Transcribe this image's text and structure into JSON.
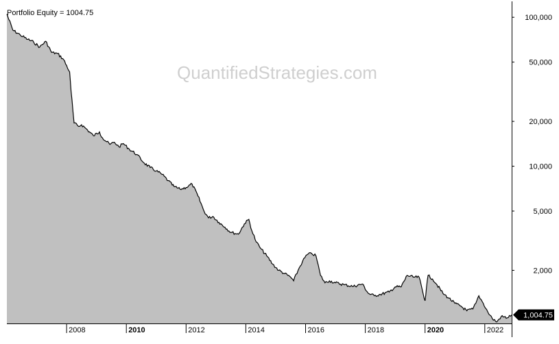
{
  "header": {
    "title": "Portfolio Equity = 1004.75"
  },
  "watermark": "QuantifiedStrategies.com",
  "chart_data": {
    "type": "area",
    "title": "Portfolio Equity = 1004.75",
    "xlabel": "",
    "ylabel": "",
    "y_scale": "log",
    "xlim": [
      2006.0,
      2022.9
    ],
    "ylim": [
      880,
      115000
    ],
    "grid": false,
    "colors": {
      "fill": "#c0c0c0",
      "line": "#000000",
      "tag": "#000000"
    },
    "x_ticks": [
      {
        "value": 2008,
        "label": "2008",
        "bold": false
      },
      {
        "value": 2010,
        "label": "2010",
        "bold": true
      },
      {
        "value": 2012,
        "label": "2012",
        "bold": false
      },
      {
        "value": 2014,
        "label": "2014",
        "bold": false
      },
      {
        "value": 2016,
        "label": "2016",
        "bold": false
      },
      {
        "value": 2018,
        "label": "2018",
        "bold": false
      },
      {
        "value": 2020,
        "label": "2020",
        "bold": true
      },
      {
        "value": 2022,
        "label": "2022",
        "bold": false
      }
    ],
    "y_ticks": [
      {
        "value": 100000,
        "label": "100,000"
      },
      {
        "value": 50000,
        "label": "50,000"
      },
      {
        "value": 20000,
        "label": "20,000"
      },
      {
        "value": 10000,
        "label": "10,000"
      },
      {
        "value": 5000,
        "label": "5,000"
      },
      {
        "value": 2000,
        "label": "2,000"
      }
    ],
    "last_value": {
      "value": 1004.75,
      "label": "1,004.75"
    },
    "series": [
      {
        "x": [
          2006.0,
          2006.2,
          2006.45,
          2006.7,
          2006.9,
          2007.1,
          2007.3,
          2007.5,
          2007.7,
          2007.9,
          2008.1,
          2008.15,
          2008.25,
          2008.4,
          2008.5,
          2008.7,
          2008.9,
          2009.1,
          2009.2,
          2009.45,
          2009.6,
          2009.75,
          2009.9,
          2010.1,
          2010.35,
          2010.6,
          2010.8,
          2011.0,
          2011.2,
          2011.4,
          2011.6,
          2011.8,
          2012.0,
          2012.2,
          2012.4,
          2012.6,
          2012.75,
          2012.9,
          2013.1,
          2013.3,
          2013.5,
          2013.75,
          2013.95,
          2014.1,
          2014.2,
          2014.35,
          2014.5,
          2014.7,
          2014.9,
          2015.1,
          2015.3,
          2015.5,
          2015.6,
          2015.75,
          2015.9,
          2016.05,
          2016.2,
          2016.35,
          2016.5,
          2016.65,
          2016.8,
          2017.0,
          2017.3,
          2017.6,
          2017.9,
          2018.1,
          2018.3,
          2018.5,
          2018.8,
          2019.0,
          2019.2,
          2019.4,
          2019.6,
          2019.8,
          2020.0,
          2020.05,
          2020.1,
          2020.25,
          2020.4,
          2020.6,
          2020.8,
          2021.0,
          2021.2,
          2021.4,
          2021.6,
          2021.7,
          2021.8,
          2021.95,
          2022.1,
          2022.25,
          2022.4,
          2022.55,
          2022.75,
          2022.9
        ],
        "y": [
          105000,
          82000,
          76000,
          71000,
          68000,
          63000,
          69000,
          58000,
          57000,
          52000,
          43000,
          32000,
          19500,
          18500,
          19000,
          17500,
          16000,
          17000,
          15500,
          14000,
          14500,
          13500,
          14200,
          13000,
          12000,
          10500,
          9800,
          9300,
          8800,
          8000,
          7300,
          7000,
          7200,
          7600,
          6300,
          5000,
          4500,
          4600,
          4200,
          3900,
          3600,
          3500,
          4100,
          4400,
          3700,
          3100,
          2800,
          2500,
          2200,
          2000,
          1900,
          1800,
          1700,
          2000,
          2300,
          2550,
          2600,
          2500,
          1850,
          1650,
          1700,
          1650,
          1600,
          1560,
          1620,
          1400,
          1350,
          1380,
          1430,
          1550,
          1550,
          1850,
          1800,
          1800,
          1250,
          1550,
          1850,
          1750,
          1600,
          1400,
          1300,
          1200,
          1150,
          1070,
          1100,
          1200,
          1350,
          1200,
          1050,
          950,
          900,
          980,
          960,
          1004.75
        ]
      }
    ]
  }
}
